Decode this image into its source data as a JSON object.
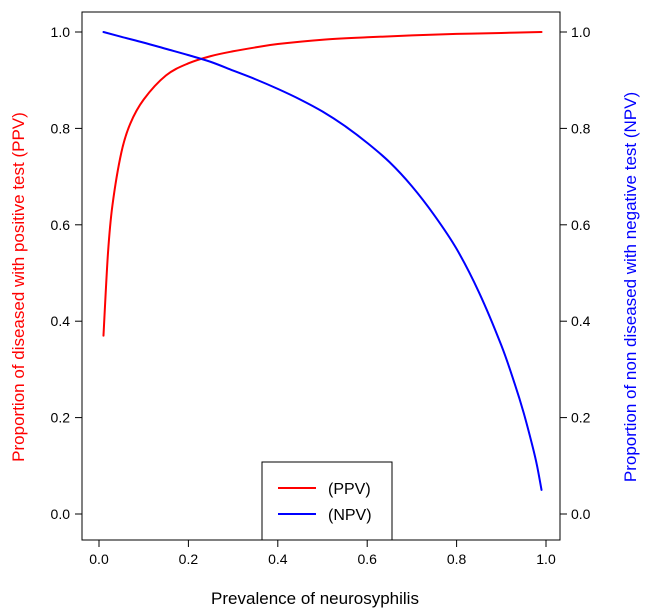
{
  "chart_data": {
    "type": "line",
    "xlabel": "Prevalence of neurosyphilis",
    "ylabel_left": "Proportion of diseased with positive test (PPV)",
    "ylabel_right": "Proportion of non diseased with negative test (NPV)",
    "xlim": [
      0,
      1
    ],
    "ylim": [
      0,
      1
    ],
    "x_ticks": [
      "0.0",
      "0.2",
      "0.4",
      "0.6",
      "0.8",
      "1.0"
    ],
    "y_ticks_left": [
      "0.0",
      "0.2",
      "0.4",
      "0.6",
      "0.8",
      "1.0"
    ],
    "y_ticks_right": [
      "0.0",
      "0.2",
      "0.4",
      "0.6",
      "0.8",
      "1.0"
    ],
    "grid": false,
    "legend_position": "bottom-center",
    "series": [
      {
        "name": "(PPV)",
        "color": "#ff0000",
        "axis": "left",
        "x": [
          0.01,
          0.02,
          0.03,
          0.05,
          0.07,
          0.1,
          0.15,
          0.2,
          0.25,
          0.3,
          0.35,
          0.4,
          0.5,
          0.6,
          0.7,
          0.8,
          0.9,
          0.99
        ],
        "y": [
          0.37,
          0.54,
          0.64,
          0.75,
          0.81,
          0.86,
          0.91,
          0.935,
          0.95,
          0.96,
          0.968,
          0.975,
          0.984,
          0.989,
          0.993,
          0.996,
          0.998,
          1.0
        ]
      },
      {
        "name": "(NPV)",
        "color": "#0000ff",
        "axis": "right",
        "x": [
          0.01,
          0.05,
          0.1,
          0.15,
          0.2,
          0.25,
          0.3,
          0.35,
          0.4,
          0.45,
          0.5,
          0.55,
          0.6,
          0.65,
          0.7,
          0.75,
          0.8,
          0.85,
          0.9,
          0.93,
          0.95,
          0.97,
          0.98,
          0.99
        ],
        "y": [
          1.0,
          0.99,
          0.978,
          0.965,
          0.952,
          0.938,
          0.92,
          0.902,
          0.882,
          0.86,
          0.835,
          0.805,
          0.77,
          0.73,
          0.68,
          0.62,
          0.55,
          0.46,
          0.35,
          0.27,
          0.21,
          0.14,
          0.1,
          0.05
        ]
      }
    ]
  }
}
